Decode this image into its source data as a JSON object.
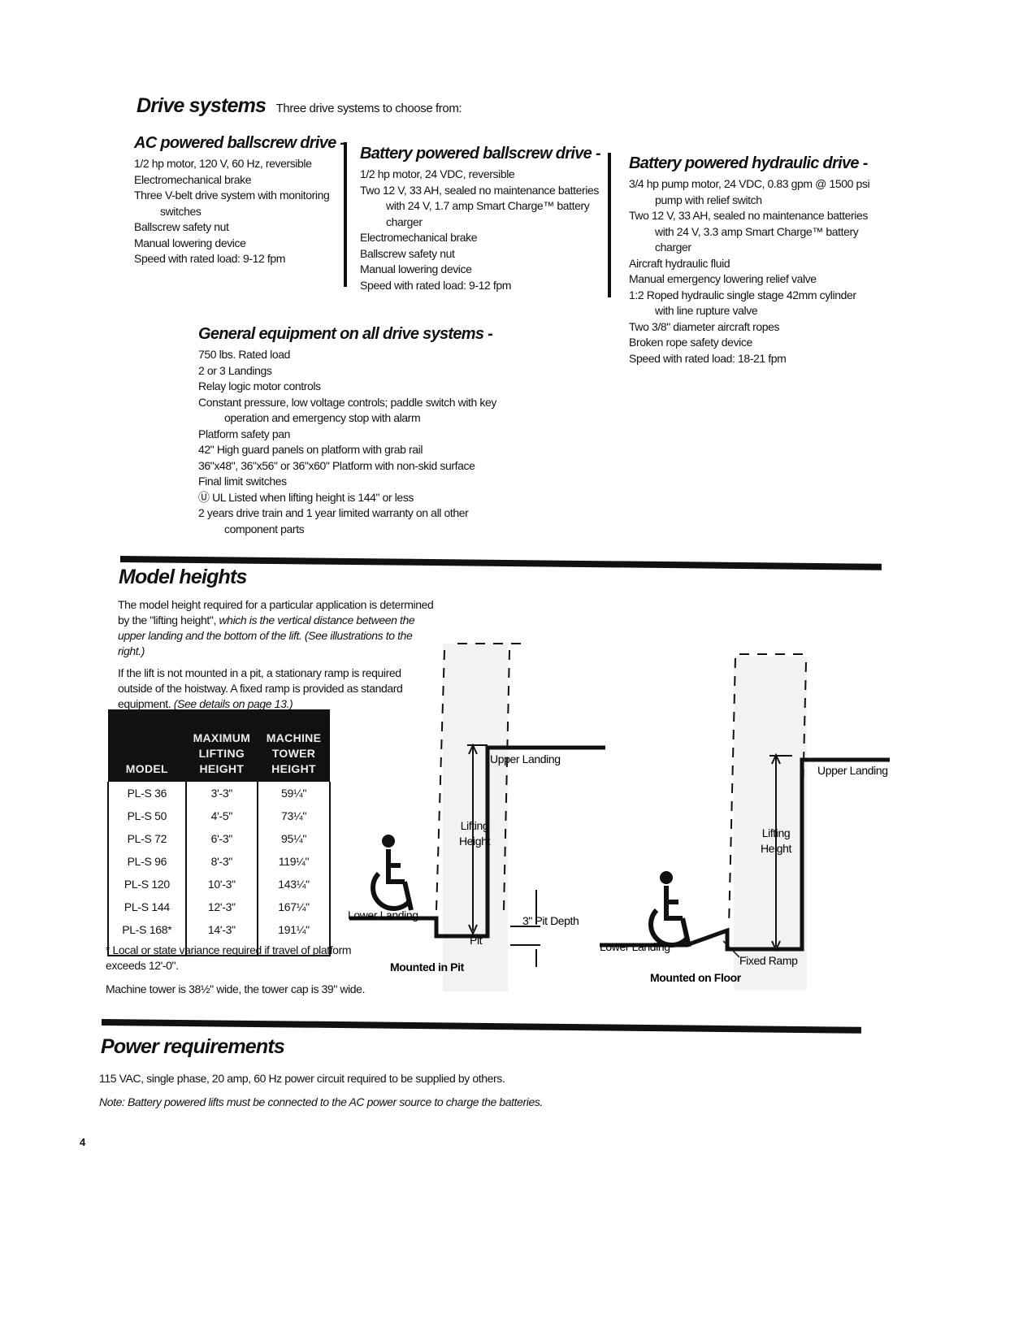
{
  "drive_systems": {
    "title": "Drive systems",
    "subtitle": "Three drive systems to choose from:",
    "columns": [
      {
        "heading": "AC powered ballscrew drive -",
        "items": [
          "1/2 hp motor, 120 V, 60 Hz, reversible",
          "Electromechanical brake",
          "Three V-belt drive system with monitoring switches",
          "Ballscrew safety nut",
          "Manual lowering device",
          "Speed with rated load: 9-12 fpm"
        ]
      },
      {
        "heading": "Battery powered ballscrew drive -",
        "items": [
          "1/2 hp motor, 24 VDC, reversible",
          "Two 12 V, 33 AH, sealed no maintenance batteries with 24 V, 1.7 amp Smart Charge™ battery charger",
          "Electromechanical brake",
          "Ballscrew safety nut",
          "Manual lowering device",
          "Speed with rated load: 9-12 fpm"
        ]
      },
      {
        "heading": "Battery powered hydraulic drive -",
        "items": [
          "3/4 hp pump motor, 24 VDC, 0.83 gpm @ 1500 psi pump with relief switch",
          "Two 12 V, 33 AH, sealed no maintenance batteries with 24 V, 3.3 amp Smart Charge™ battery charger",
          "Aircraft hydraulic fluid",
          "Manual emergency lowering relief valve",
          "1:2 Roped hydraulic single stage 42mm cylinder with line rupture valve",
          "Two 3/8\" diameter aircraft ropes",
          "Broken rope safety device",
          "Speed with rated load: 18-21 fpm"
        ]
      }
    ],
    "general": {
      "heading": "General equipment on all drive systems -",
      "items": [
        "750 lbs. Rated load",
        "2 or 3 Landings",
        "Relay logic motor controls",
        "Constant pressure, low voltage controls; paddle switch with key operation and emergency stop with alarm",
        "Platform safety pan",
        "42\" High guard panels on platform with grab rail",
        "36\"x48\", 36\"x56\" or 36\"x60\" Platform with non-skid surface",
        "Final limit switches",
        "Ⓤ UL Listed when lifting height is 144\" or less",
        "2 years drive train and 1 year limited warranty on all other component parts"
      ]
    }
  },
  "model_heights": {
    "title": "Model heights",
    "para1_normal": "The model height required for a particular application is determined by the \"lifting height\", ",
    "para1_italic": "which is the vertical distance between the upper landing and the bottom of the lift.  (See illustrations to the right.)",
    "para2_normal": "If the lift is not mounted in a pit, a stationary ramp is required outside of the hoistway.  A fixed ramp is provided as standard equipment. ",
    "para2_italic": "(See details on page 13.)",
    "table": {
      "headers": [
        "MODEL",
        "MAXIMUM LIFTING HEIGHT",
        "MACHINE TOWER HEIGHT"
      ],
      "rows": [
        [
          "PL-S 36",
          "3'-3\"",
          "59¼\""
        ],
        [
          "PL-S 50",
          "4'-5\"",
          "73¼\""
        ],
        [
          "PL-S 72",
          "6'-3\"",
          "95¼\""
        ],
        [
          "PL-S 96",
          "8'-3\"",
          "119¼\""
        ],
        [
          "PL-S 120",
          "10'-3\"",
          "143¼\""
        ],
        [
          "PL-S 144",
          "12'-3\"",
          "167¼\""
        ],
        [
          "PL-S 168*",
          "14'-3\"",
          "191¼\""
        ]
      ]
    },
    "footnote": "* Local or state variance required if travel of platform exceeds 12'-0\".",
    "tower_note": "Machine tower is 38½\" wide, the tower cap is 39\" wide.",
    "diagram_pit": {
      "caption": "Mounted in Pit",
      "upper_landing": "Upper Landing",
      "lifting": "Lifting",
      "height": "Height",
      "lower_landing": "Lower Landing",
      "pit": "Pit",
      "pit_depth": "3\" Pit Depth"
    },
    "diagram_floor": {
      "caption": "Mounted on Floor",
      "upper_landing": "Upper Landing",
      "lifting": "Lifting",
      "height": "Height",
      "lower_landing": "Lower Landing",
      "fixed_ramp": "Fixed Ramp"
    }
  },
  "power": {
    "title": "Power requirements",
    "text": "115 VAC, single phase, 20 amp, 60 Hz power circuit required to be supplied by others.",
    "note": "Note: Battery powered lifts must be connected to the AC power source to charge the batteries."
  },
  "page_number": "4"
}
